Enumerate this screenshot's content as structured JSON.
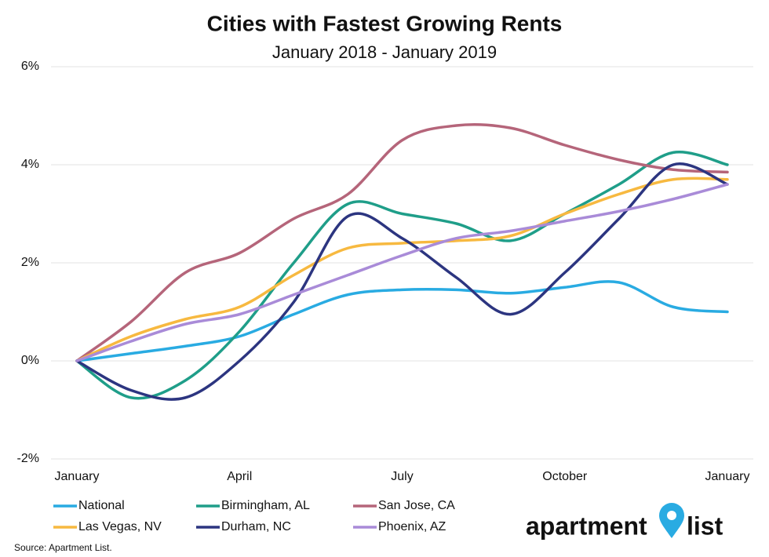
{
  "chart_data": {
    "type": "line",
    "title": "Cities with Fastest Growing Rents",
    "subtitle": "January 2018 - January 2019",
    "source": "Source: Apartment List.",
    "logo": [
      "apartment",
      "list"
    ],
    "categories": [
      "January",
      null,
      null,
      "April",
      null,
      null,
      "July",
      null,
      null,
      "October",
      null,
      null,
      "January"
    ],
    "ylim": [
      -2,
      6
    ],
    "yticks": [
      {
        "value": -2,
        "label": "-2%"
      },
      {
        "value": 0,
        "label": "0%"
      },
      {
        "value": 2,
        "label": "2%"
      },
      {
        "value": 4,
        "label": "4%"
      },
      {
        "value": 6,
        "label": "6%"
      }
    ],
    "grid": true,
    "series": [
      {
        "name": "National",
        "color": "#29abe2",
        "values": [
          0,
          0.15,
          0.3,
          0.5,
          0.95,
          1.35,
          1.45,
          1.45,
          1.38,
          1.5,
          1.6,
          1.1,
          1.0
        ]
      },
      {
        "name": "Birmingham, AL",
        "color": "#1f9e89",
        "values": [
          0,
          -0.75,
          -0.4,
          0.6,
          2.0,
          3.2,
          3.0,
          2.8,
          2.45,
          3.0,
          3.6,
          4.25,
          4.0
        ]
      },
      {
        "name": "San Jose, CA",
        "color": "#b5657a",
        "values": [
          0,
          0.8,
          1.8,
          2.2,
          2.9,
          3.4,
          4.5,
          4.8,
          4.75,
          4.4,
          4.1,
          3.9,
          3.85
        ]
      },
      {
        "name": "Las Vegas, NV",
        "color": "#f7b940",
        "values": [
          0,
          0.5,
          0.85,
          1.1,
          1.75,
          2.3,
          2.4,
          2.45,
          2.55,
          3.0,
          3.4,
          3.7,
          3.7
        ]
      },
      {
        "name": "Durham, NC",
        "color": "#2c3580",
        "values": [
          0,
          -0.6,
          -0.75,
          0.0,
          1.2,
          2.95,
          2.5,
          1.7,
          0.95,
          1.8,
          2.9,
          4.0,
          3.6
        ]
      },
      {
        "name": "Phoenix, AZ",
        "color": "#a98bd8",
        "values": [
          0,
          0.4,
          0.75,
          0.95,
          1.35,
          1.75,
          2.15,
          2.5,
          2.65,
          2.85,
          3.05,
          3.3,
          3.6
        ]
      }
    ]
  }
}
